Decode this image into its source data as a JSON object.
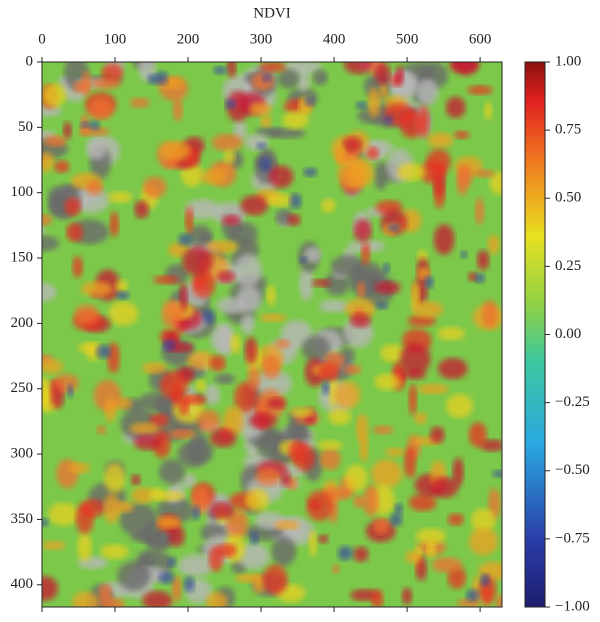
{
  "chart_data": {
    "type": "heatmap",
    "title": "NDVI",
    "xlim": [
      0,
      630
    ],
    "xticks": [
      0,
      100,
      200,
      300,
      400,
      500,
      600
    ],
    "ylim": [
      417,
      0
    ],
    "yticks": [
      0,
      50,
      100,
      150,
      200,
      250,
      300,
      350,
      400
    ],
    "colorbar": {
      "lim": [
        -1,
        1
      ],
      "ticks": [
        {
          "value": 1,
          "label": "1.00"
        },
        {
          "value": 0.75,
          "label": "0.75"
        },
        {
          "value": 0.5,
          "label": "0.50"
        },
        {
          "value": 0.25,
          "label": "0.25"
        },
        {
          "value": 0,
          "label": "0.00"
        },
        {
          "value": -0.25,
          "label": "−0.25"
        },
        {
          "value": -0.5,
          "label": "−0.50"
        },
        {
          "value": -0.75,
          "label": "−0.75"
        },
        {
          "value": -1,
          "label": "−1.00"
        }
      ]
    }
  }
}
